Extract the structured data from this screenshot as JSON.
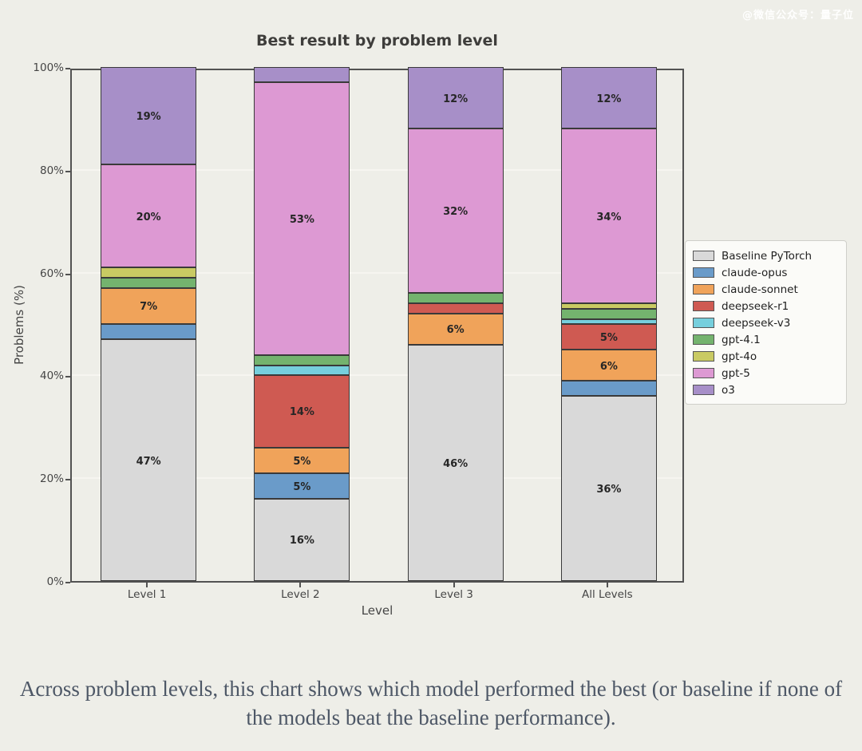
{
  "watermark": "@微信公众号：量子位",
  "caption": "Across problem levels, this chart shows which model performed the best (or baseline if none of the models beat the baseline performance).",
  "chart_data": {
    "type": "bar",
    "stacked": true,
    "title": "Best result by problem level",
    "xlabel": "Level",
    "ylabel": "Problems (%)",
    "unit": "%",
    "ylim": [
      0,
      100
    ],
    "yticks": [
      0,
      20,
      40,
      60,
      80,
      100
    ],
    "grid": true,
    "legend_position": "right of axes, vertically centered",
    "label_rule": "segment percentage labels shown only for values >= 5%",
    "label_min_pct": 5,
    "categories": [
      "Level 1",
      "Level 2",
      "Level 3",
      "All Levels"
    ],
    "series": [
      {
        "name": "Baseline PyTorch",
        "color": "#d9d9d9",
        "values": [
          47,
          16,
          46,
          36
        ]
      },
      {
        "name": "claude-opus",
        "color": "#6a9bc9",
        "values": [
          3,
          5,
          0,
          3
        ]
      },
      {
        "name": "claude-sonnet",
        "color": "#f0a35a",
        "values": [
          7,
          5,
          6,
          6
        ]
      },
      {
        "name": "deepseek-r1",
        "color": "#cf5a52",
        "values": [
          0,
          14,
          2,
          5
        ]
      },
      {
        "name": "deepseek-v3",
        "color": "#76cfdd",
        "values": [
          0,
          2,
          0,
          1
        ]
      },
      {
        "name": "gpt-4.1",
        "color": "#74b36e",
        "values": [
          2,
          2,
          2,
          2
        ]
      },
      {
        "name": "gpt-4o",
        "color": "#c9ca63",
        "values": [
          2,
          0,
          0,
          1
        ]
      },
      {
        "name": "gpt-5",
        "color": "#dd99d3",
        "values": [
          20,
          53,
          32,
          34
        ]
      },
      {
        "name": "o3",
        "color": "#a78fc8",
        "values": [
          19,
          3,
          12,
          12
        ]
      }
    ]
  }
}
